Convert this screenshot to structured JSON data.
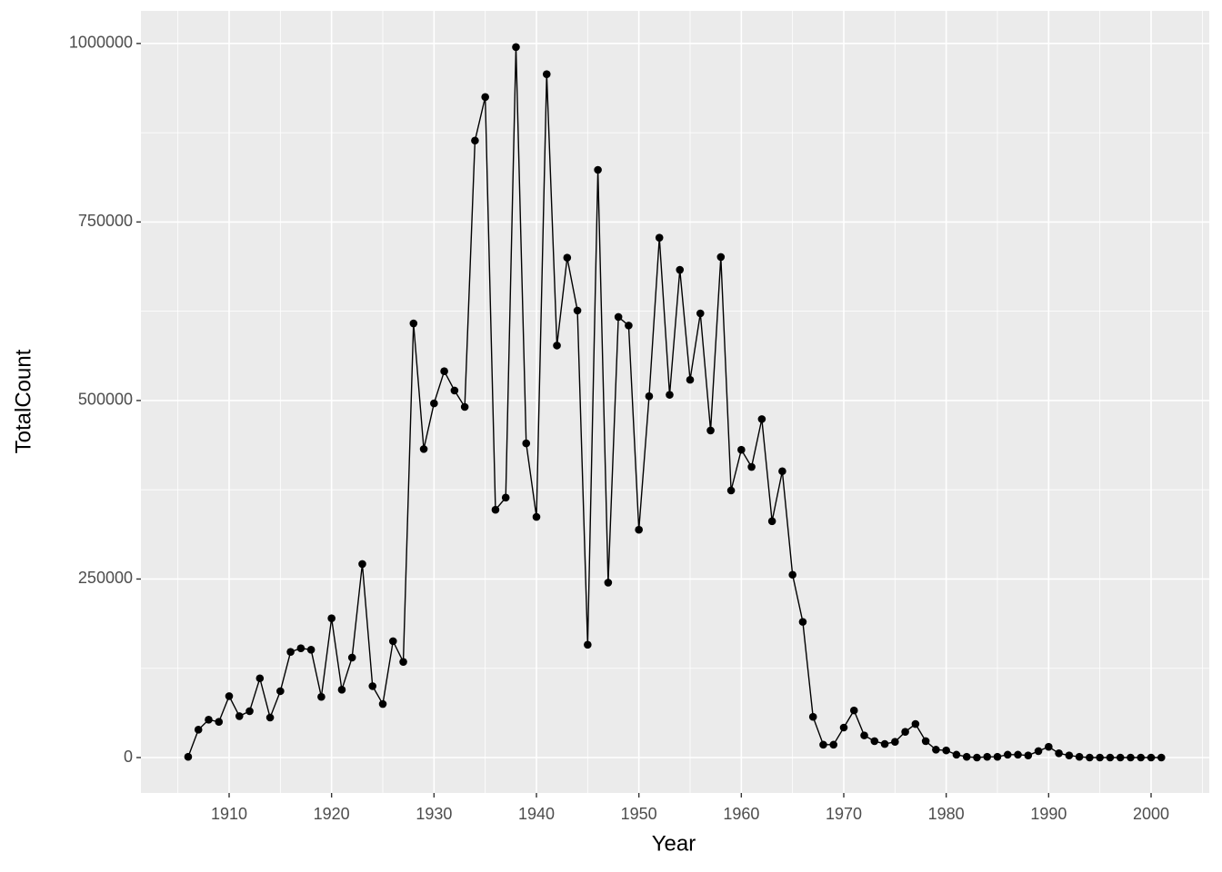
{
  "chart_data": {
    "type": "line",
    "x_label": "Year",
    "y_label": "TotalCount",
    "x": [
      1906,
      1907,
      1908,
      1909,
      1910,
      1911,
      1912,
      1913,
      1914,
      1915,
      1916,
      1917,
      1918,
      1919,
      1920,
      1921,
      1922,
      1923,
      1924,
      1925,
      1926,
      1927,
      1928,
      1929,
      1930,
      1931,
      1932,
      1933,
      1934,
      1935,
      1936,
      1937,
      1938,
      1939,
      1940,
      1941,
      1942,
      1943,
      1944,
      1945,
      1946,
      1947,
      1948,
      1949,
      1950,
      1951,
      1952,
      1953,
      1954,
      1955,
      1956,
      1957,
      1958,
      1959,
      1960,
      1961,
      1962,
      1963,
      1964,
      1965,
      1966,
      1967,
      1968,
      1969,
      1970,
      1971,
      1972,
      1973,
      1974,
      1975,
      1976,
      1977,
      1978,
      1979,
      1980,
      1981,
      1982,
      1983,
      1984,
      1985,
      1986,
      1987,
      1988,
      1989,
      1990,
      1991,
      1992,
      1993,
      1994,
      1995,
      1996,
      1997,
      1998,
      1999,
      2000,
      2001
    ],
    "values": [
      1000,
      39000,
      53000,
      50000,
      86000,
      58000,
      65000,
      111000,
      56000,
      93000,
      148000,
      153000,
      151000,
      85000,
      195000,
      95000,
      140000,
      271000,
      100000,
      75000,
      163000,
      134000,
      608000,
      432000,
      496000,
      541000,
      514000,
      491000,
      864000,
      925000,
      347000,
      364000,
      995000,
      440000,
      337000,
      957000,
      577000,
      700000,
      626000,
      158000,
      823000,
      245000,
      617000,
      605000,
      319000,
      506000,
      728000,
      508000,
      683000,
      529000,
      622000,
      458000,
      701000,
      374000,
      431000,
      407000,
      474000,
      331000,
      401000,
      256000,
      190000,
      57000,
      18000,
      18000,
      42000,
      66000,
      31000,
      23000,
      19000,
      22000,
      36000,
      47000,
      23000,
      11000,
      10000,
      4000,
      1000,
      0,
      1000,
      1000,
      4000,
      4000,
      3000,
      9000,
      15000,
      6000,
      3000,
      1000,
      0,
      0,
      0,
      0,
      0,
      0,
      0,
      0
    ],
    "color": "#000000",
    "xlim": [
      1901.39,
      2005.68
    ],
    "xticks": [
      1910,
      1920,
      1930,
      1940,
      1950,
      1960,
      1970,
      1980,
      1990,
      2000
    ],
    "ylim": [
      -49600,
      1045600
    ],
    "yticks": [
      0,
      250000,
      500000,
      750000,
      1000000
    ],
    "grid": true
  }
}
